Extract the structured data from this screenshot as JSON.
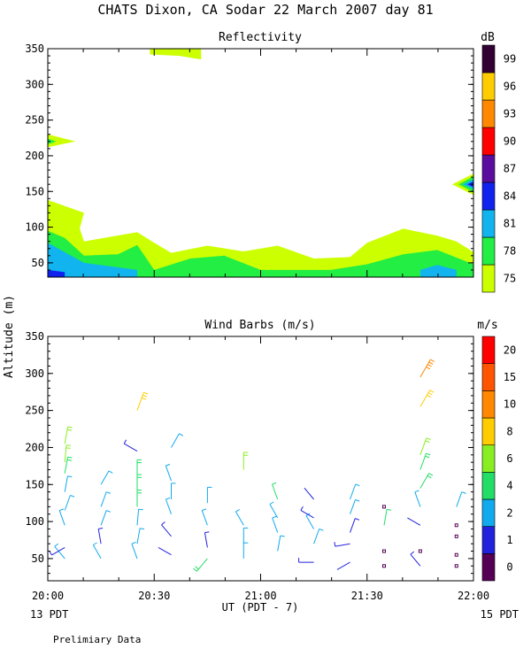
{
  "header": {
    "title": "CHATS Dixon, CA  Sodar  22 March 2007  day  81",
    "footnote": "Prelimiary Data",
    "ylabel": "Altitude (m)",
    "xlabel": "UT  (PDT - 7)",
    "left_date": "13 PDT",
    "right_date": "15 PDT"
  },
  "colors": {
    "reflectivity_scale": [
      "#ccff00",
      "#22ee44",
      "#11b4ee",
      "#1122ee",
      "#5b0e9e",
      "#ff0000",
      "#ff8800",
      "#ffcc00",
      "#330033"
    ],
    "wind_scale": [
      "#550055",
      "#2222dd",
      "#11aaee",
      "#22dd66",
      "#88ee22",
      "#ffcc00",
      "#ff8800",
      "#ff5500",
      "#ff0000"
    ]
  },
  "chart_data": [
    {
      "type": "heatmap",
      "title": "Reflectivity",
      "units_label": "dB",
      "x_range": [
        20.0,
        22.0
      ],
      "ylim": [
        30,
        350
      ],
      "yticks": [
        50,
        100,
        150,
        200,
        250,
        300,
        350
      ],
      "xtick_labels": [
        "20:00",
        "20:30",
        "21:00",
        "21:30",
        "22:00"
      ],
      "colorbar_labels": [
        "75",
        "78",
        "81",
        "84",
        "87",
        "90",
        "93",
        "96",
        "99"
      ],
      "contours": [
        {
          "level": 75,
          "color_index": 0,
          "points": [
            [
              20.0,
              138
            ],
            [
              20.17,
              120
            ],
            [
              20.15,
              98
            ],
            [
              20.17,
              80
            ],
            [
              20.42,
              93
            ],
            [
              20.5,
              78
            ],
            [
              20.58,
              64
            ],
            [
              20.75,
              74
            ],
            [
              20.92,
              66
            ],
            [
              21.08,
              74
            ],
            [
              21.25,
              56
            ],
            [
              21.42,
              58
            ],
            [
              21.5,
              78
            ],
            [
              21.67,
              98
            ],
            [
              21.83,
              88
            ],
            [
              21.92,
              80
            ],
            [
              22.0,
              65
            ],
            [
              22.0,
              30
            ],
            [
              20.0,
              30
            ]
          ]
        },
        {
          "level": 78,
          "color_index": 1,
          "points": [
            [
              20.0,
              95
            ],
            [
              20.08,
              85
            ],
            [
              20.17,
              60
            ],
            [
              20.33,
              62
            ],
            [
              20.42,
              75
            ],
            [
              20.5,
              40
            ],
            [
              20.67,
              56
            ],
            [
              20.83,
              60
            ],
            [
              21.0,
              40
            ],
            [
              21.33,
              40
            ],
            [
              21.5,
              48
            ],
            [
              21.67,
              62
            ],
            [
              21.83,
              68
            ],
            [
              22.0,
              48
            ],
            [
              22.0,
              30
            ],
            [
              20.0,
              30
            ]
          ]
        },
        {
          "level": 81,
          "color_index": 2,
          "points": [
            [
              20.0,
              78
            ],
            [
              20.17,
              50
            ],
            [
              20.42,
              40
            ],
            [
              20.42,
              30
            ],
            [
              20.0,
              30
            ]
          ]
        },
        {
          "level": 81,
          "color_index": 2,
          "points": [
            [
              21.75,
              40
            ],
            [
              21.83,
              47
            ],
            [
              21.92,
              40
            ],
            [
              21.92,
              30
            ],
            [
              21.75,
              30
            ]
          ]
        },
        {
          "level": 84,
          "color_index": 3,
          "points": [
            [
              20.0,
              40
            ],
            [
              20.08,
              37
            ],
            [
              20.08,
              30
            ],
            [
              20.0,
              30
            ]
          ]
        },
        {
          "level": 75,
          "color_index": 0,
          "points": [
            [
              20.0,
              230
            ],
            [
              20.13,
              220
            ],
            [
              20.0,
              212
            ]
          ]
        },
        {
          "level": 78,
          "color_index": 1,
          "points": [
            [
              20.0,
              224
            ],
            [
              20.04,
              220
            ],
            [
              20.0,
              216
            ]
          ]
        },
        {
          "level": 75,
          "color_index": 0,
          "points": [
            [
              20.48,
              350
            ],
            [
              20.72,
              350
            ],
            [
              20.72,
              335
            ],
            [
              20.62,
              340
            ],
            [
              20.48,
              342
            ]
          ]
        },
        {
          "level": 75,
          "color_index": 0,
          "points": [
            [
              21.9,
              160
            ],
            [
              22.0,
              175
            ],
            [
              22.0,
              145
            ]
          ]
        },
        {
          "level": 78,
          "color_index": 1,
          "points": [
            [
              21.93,
              160
            ],
            [
              22.0,
              171
            ],
            [
              22.0,
              149
            ]
          ]
        },
        {
          "level": 81,
          "color_index": 2,
          "points": [
            [
              21.95,
              160
            ],
            [
              22.0,
              167
            ],
            [
              22.0,
              153
            ]
          ]
        },
        {
          "level": 84,
          "color_index": 3,
          "points": [
            [
              21.97,
              160
            ],
            [
              22.0,
              164
            ],
            [
              22.0,
              156
            ]
          ]
        }
      ]
    },
    {
      "type": "scatter",
      "title": "Wind Barbs (m/s)",
      "units_label": "m/s",
      "x_range": [
        20.0,
        22.0
      ],
      "ylim": [
        20,
        350
      ],
      "yticks": [
        50,
        100,
        150,
        200,
        250,
        300,
        350
      ],
      "xtick_labels": [
        "20:00",
        "20:30",
        "21:00",
        "21:30",
        "22:00"
      ],
      "colorbar_labels": [
        "0",
        "1",
        "2",
        "4",
        "6",
        "8",
        "10",
        "15",
        "20"
      ],
      "barbs": [
        {
          "t": 20.08,
          "h": 50,
          "dir": 320,
          "speed": 2.5,
          "c": 2
        },
        {
          "t": 20.08,
          "h": 65,
          "dir": 240,
          "speed": 1.5,
          "c": 1
        },
        {
          "t": 20.08,
          "h": 95,
          "dir": 340,
          "speed": 2.5,
          "c": 2
        },
        {
          "t": 20.08,
          "h": 115,
          "dir": 20,
          "speed": 3,
          "c": 2
        },
        {
          "t": 20.08,
          "h": 140,
          "dir": 10,
          "speed": 3,
          "c": 2
        },
        {
          "t": 20.08,
          "h": 165,
          "dir": 10,
          "speed": 4,
          "c": 3
        },
        {
          "t": 20.08,
          "h": 180,
          "dir": 5,
          "speed": 5,
          "c": 4
        },
        {
          "t": 20.08,
          "h": 205,
          "dir": 10,
          "speed": 5,
          "c": 4
        },
        {
          "t": 20.25,
          "h": 50,
          "dir": 330,
          "speed": 2.5,
          "c": 2
        },
        {
          "t": 20.25,
          "h": 70,
          "dir": 350,
          "speed": 1.5,
          "c": 1
        },
        {
          "t": 20.25,
          "h": 95,
          "dir": 20,
          "speed": 2.5,
          "c": 2
        },
        {
          "t": 20.25,
          "h": 120,
          "dir": 20,
          "speed": 2.5,
          "c": 2
        },
        {
          "t": 20.25,
          "h": 150,
          "dir": 30,
          "speed": 2.5,
          "c": 2
        },
        {
          "t": 20.42,
          "h": 50,
          "dir": 340,
          "speed": 2.5,
          "c": 2
        },
        {
          "t": 20.42,
          "h": 70,
          "dir": 10,
          "speed": 2.5,
          "c": 2
        },
        {
          "t": 20.42,
          "h": 95,
          "dir": 5,
          "speed": 3,
          "c": 2
        },
        {
          "t": 20.42,
          "h": 120,
          "dir": 0,
          "speed": 4,
          "c": 3
        },
        {
          "t": 20.42,
          "h": 140,
          "dir": 0,
          "speed": 5,
          "c": 3
        },
        {
          "t": 20.42,
          "h": 160,
          "dir": 0,
          "speed": 5,
          "c": 3
        },
        {
          "t": 20.42,
          "h": 195,
          "dir": 300,
          "speed": 1.5,
          "c": 1
        },
        {
          "t": 20.42,
          "h": 250,
          "dir": 20,
          "speed": 8,
          "c": 5
        },
        {
          "t": 20.58,
          "h": 55,
          "dir": 300,
          "speed": 1,
          "c": 1
        },
        {
          "t": 20.58,
          "h": 80,
          "dir": 320,
          "speed": 1.5,
          "c": 1
        },
        {
          "t": 20.58,
          "h": 110,
          "dir": 340,
          "speed": 2.5,
          "c": 2
        },
        {
          "t": 20.58,
          "h": 130,
          "dir": 0,
          "speed": 3,
          "c": 2
        },
        {
          "t": 20.58,
          "h": 155,
          "dir": 340,
          "speed": 3,
          "c": 2
        },
        {
          "t": 20.58,
          "h": 200,
          "dir": 30,
          "speed": 3,
          "c": 2
        },
        {
          "t": 20.75,
          "h": 50,
          "dir": 220,
          "speed": 4,
          "c": 3
        },
        {
          "t": 20.75,
          "h": 65,
          "dir": 350,
          "speed": 1.5,
          "c": 1
        },
        {
          "t": 20.75,
          "h": 95,
          "dir": 340,
          "speed": 2.5,
          "c": 2
        },
        {
          "t": 20.75,
          "h": 125,
          "dir": 0,
          "speed": 2.5,
          "c": 2
        },
        {
          "t": 20.92,
          "h": 50,
          "dir": 0,
          "speed": 2.5,
          "c": 2
        },
        {
          "t": 20.92,
          "h": 70,
          "dir": 0,
          "speed": 2.5,
          "c": 2
        },
        {
          "t": 20.92,
          "h": 95,
          "dir": 330,
          "speed": 2.5,
          "c": 2
        },
        {
          "t": 20.92,
          "h": 170,
          "dir": 0,
          "speed": 5,
          "c": 4
        },
        {
          "t": 21.08,
          "h": 60,
          "dir": 10,
          "speed": 2.5,
          "c": 2
        },
        {
          "t": 21.08,
          "h": 85,
          "dir": 340,
          "speed": 2.5,
          "c": 2
        },
        {
          "t": 21.08,
          "h": 105,
          "dir": 330,
          "speed": 2.5,
          "c": 2
        },
        {
          "t": 21.08,
          "h": 130,
          "dir": 340,
          "speed": 3,
          "c": 3
        },
        {
          "t": 21.25,
          "h": 45,
          "dir": 270,
          "speed": 1.5,
          "c": 1
        },
        {
          "t": 21.25,
          "h": 70,
          "dir": 20,
          "speed": 2.5,
          "c": 2
        },
        {
          "t": 21.25,
          "h": 90,
          "dir": 330,
          "speed": 2,
          "c": 2
        },
        {
          "t": 21.25,
          "h": 105,
          "dir": 300,
          "speed": 1.5,
          "c": 1
        },
        {
          "t": 21.25,
          "h": 130,
          "dir": 320,
          "speed": 1,
          "c": 1
        },
        {
          "t": 21.42,
          "h": 45,
          "dir": 240,
          "speed": 1,
          "c": 1
        },
        {
          "t": 21.42,
          "h": 70,
          "dir": 260,
          "speed": 1.5,
          "c": 1
        },
        {
          "t": 21.42,
          "h": 85,
          "dir": 20,
          "speed": 1.5,
          "c": 1
        },
        {
          "t": 21.42,
          "h": 110,
          "dir": 20,
          "speed": 2,
          "c": 2
        },
        {
          "t": 21.42,
          "h": 130,
          "dir": 20,
          "speed": 3,
          "c": 2
        },
        {
          "t": 21.58,
          "h": 40,
          "dir": 0,
          "speed": 0,
          "c": 0
        },
        {
          "t": 21.58,
          "h": 60,
          "dir": 0,
          "speed": 0,
          "c": 0
        },
        {
          "t": 21.58,
          "h": 95,
          "dir": 10,
          "speed": 3,
          "c": 3
        },
        {
          "t": 21.58,
          "h": 120,
          "dir": 0,
          "speed": 0,
          "c": 0
        },
        {
          "t": 21.75,
          "h": 40,
          "dir": 320,
          "speed": 1.5,
          "c": 1
        },
        {
          "t": 21.75,
          "h": 60,
          "dir": 0,
          "speed": 0,
          "c": 0
        },
        {
          "t": 21.75,
          "h": 95,
          "dir": 300,
          "speed": 1,
          "c": 1
        },
        {
          "t": 21.75,
          "h": 120,
          "dir": 340,
          "speed": 2.5,
          "c": 2
        },
        {
          "t": 21.75,
          "h": 145,
          "dir": 30,
          "speed": 5,
          "c": 3
        },
        {
          "t": 21.75,
          "h": 170,
          "dir": 20,
          "speed": 5,
          "c": 3
        },
        {
          "t": 21.75,
          "h": 190,
          "dir": 20,
          "speed": 6,
          "c": 4
        },
        {
          "t": 21.75,
          "h": 255,
          "dir": 30,
          "speed": 8,
          "c": 5
        },
        {
          "t": 21.75,
          "h": 295,
          "dir": 30,
          "speed": 10,
          "c": 6
        },
        {
          "t": 21.92,
          "h": 40,
          "dir": 0,
          "speed": 0,
          "c": 0
        },
        {
          "t": 21.92,
          "h": 55,
          "dir": 0,
          "speed": 0,
          "c": 0
        },
        {
          "t": 21.92,
          "h": 80,
          "dir": 0,
          "speed": 0,
          "c": 0
        },
        {
          "t": 21.92,
          "h": 95,
          "dir": 0,
          "speed": 0,
          "c": 0
        },
        {
          "t": 21.92,
          "h": 120,
          "dir": 20,
          "speed": 2.5,
          "c": 2
        }
      ]
    }
  ]
}
